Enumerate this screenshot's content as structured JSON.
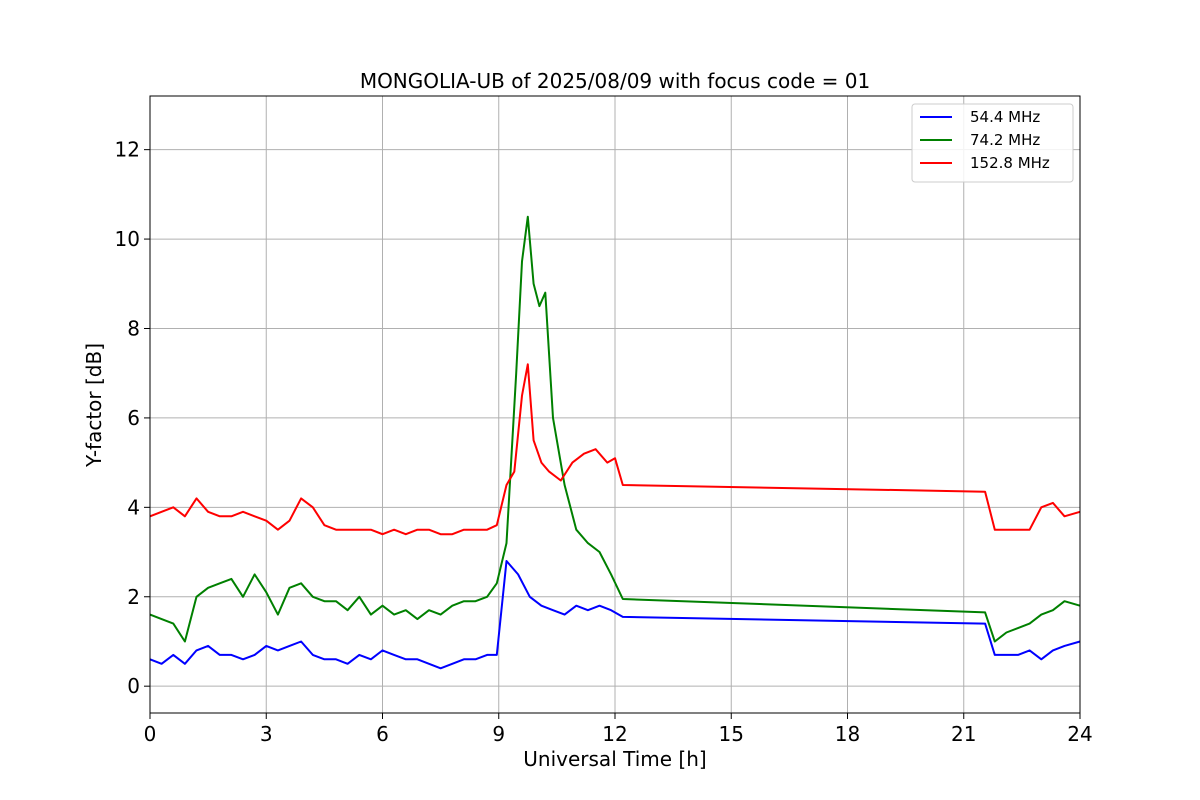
{
  "chart_data": {
    "type": "line",
    "title": "MONGOLIA-UB of 2025/08/09 with focus code = 01",
    "xlabel": "Universal Time [h]",
    "ylabel": "Y-factor [dB]",
    "xlim": [
      0,
      24
    ],
    "ylim": [
      -0.6,
      13.2
    ],
    "xticks": [
      0,
      3,
      6,
      9,
      12,
      15,
      18,
      21,
      24
    ],
    "xtick_labels": [
      "0",
      "3",
      "6",
      "9",
      "12",
      "15",
      "18",
      "21",
      "24"
    ],
    "yticks": [
      0,
      2,
      4,
      6,
      8,
      10,
      12
    ],
    "ytick_labels": [
      "0",
      "2",
      "4",
      "6",
      "8",
      "10",
      "12"
    ],
    "grid": true,
    "legend_position": "top-right",
    "series": [
      {
        "name": "54.4 MHz",
        "color": "#0000ff",
        "x": [
          0,
          0.3,
          0.6,
          0.9,
          1.2,
          1.5,
          1.8,
          2.1,
          2.4,
          2.7,
          3.0,
          3.3,
          3.6,
          3.9,
          4.2,
          4.5,
          4.8,
          5.1,
          5.4,
          5.7,
          6.0,
          6.3,
          6.6,
          6.9,
          7.2,
          7.5,
          7.8,
          8.1,
          8.4,
          8.7,
          8.95,
          9.2,
          9.5,
          9.8,
          10.1,
          10.4,
          10.7,
          11.0,
          11.3,
          11.6,
          11.9,
          12.2,
          21.55,
          21.8,
          22.1,
          22.4,
          22.7,
          23.0,
          23.3,
          23.6,
          24.0
        ],
        "y": [
          0.6,
          0.5,
          0.7,
          0.5,
          0.8,
          0.9,
          0.7,
          0.7,
          0.6,
          0.7,
          0.9,
          0.8,
          0.9,
          1.0,
          0.7,
          0.6,
          0.6,
          0.5,
          0.7,
          0.6,
          0.8,
          0.7,
          0.6,
          0.6,
          0.5,
          0.4,
          0.5,
          0.6,
          0.6,
          0.7,
          0.7,
          2.8,
          2.5,
          2.0,
          1.8,
          1.7,
          1.6,
          1.8,
          1.7,
          1.8,
          1.7,
          1.55,
          1.4,
          0.7,
          0.7,
          0.7,
          0.8,
          0.6,
          0.8,
          0.9,
          1.0
        ]
      },
      {
        "name": "74.2 MHz",
        "color": "#008000",
        "x": [
          0,
          0.3,
          0.6,
          0.9,
          1.2,
          1.5,
          1.8,
          2.1,
          2.4,
          2.7,
          3.0,
          3.3,
          3.6,
          3.9,
          4.2,
          4.5,
          4.8,
          5.1,
          5.4,
          5.7,
          6.0,
          6.3,
          6.6,
          6.9,
          7.2,
          7.5,
          7.8,
          8.1,
          8.4,
          8.7,
          8.95,
          9.2,
          9.45,
          9.6,
          9.75,
          9.9,
          10.05,
          10.2,
          10.4,
          10.7,
          11.0,
          11.3,
          11.6,
          11.9,
          12.2,
          21.55,
          21.8,
          22.1,
          22.4,
          22.7,
          23.0,
          23.3,
          23.6,
          24.0
        ],
        "y": [
          1.6,
          1.5,
          1.4,
          1.0,
          2.0,
          2.2,
          2.3,
          2.4,
          2.0,
          2.5,
          2.1,
          1.6,
          2.2,
          2.3,
          2.0,
          1.9,
          1.9,
          1.7,
          2.0,
          1.6,
          1.8,
          1.6,
          1.7,
          1.5,
          1.7,
          1.6,
          1.8,
          1.9,
          1.9,
          2.0,
          2.3,
          3.2,
          7.0,
          9.5,
          10.5,
          9.0,
          8.5,
          8.8,
          6.0,
          4.5,
          3.5,
          3.2,
          3.0,
          2.5,
          1.95,
          1.65,
          1.0,
          1.2,
          1.3,
          1.4,
          1.6,
          1.7,
          1.9,
          1.8
        ]
      },
      {
        "name": "152.8 MHz",
        "color": "#ff0000",
        "x": [
          0,
          0.3,
          0.6,
          0.9,
          1.2,
          1.5,
          1.8,
          2.1,
          2.4,
          2.7,
          3.0,
          3.3,
          3.6,
          3.9,
          4.2,
          4.5,
          4.8,
          5.1,
          5.4,
          5.7,
          6.0,
          6.3,
          6.6,
          6.9,
          7.2,
          7.5,
          7.8,
          8.1,
          8.4,
          8.7,
          8.95,
          9.2,
          9.4,
          9.6,
          9.75,
          9.9,
          10.1,
          10.3,
          10.6,
          10.9,
          11.2,
          11.5,
          11.8,
          12.0,
          12.2,
          21.55,
          21.8,
          22.1,
          22.4,
          22.7,
          23.0,
          23.3,
          23.6,
          24.0
        ],
        "y": [
          3.8,
          3.9,
          4.0,
          3.8,
          4.2,
          3.9,
          3.8,
          3.8,
          3.9,
          3.8,
          3.7,
          3.5,
          3.7,
          4.2,
          4.0,
          3.6,
          3.5,
          3.5,
          3.5,
          3.5,
          3.4,
          3.5,
          3.4,
          3.5,
          3.5,
          3.4,
          3.4,
          3.5,
          3.5,
          3.5,
          3.6,
          4.5,
          4.8,
          6.5,
          7.2,
          5.5,
          5.0,
          4.8,
          4.6,
          5.0,
          5.2,
          5.3,
          5.0,
          5.1,
          4.5,
          4.35,
          3.5,
          3.5,
          3.5,
          3.5,
          4.0,
          4.1,
          3.8,
          3.9
        ]
      }
    ]
  }
}
